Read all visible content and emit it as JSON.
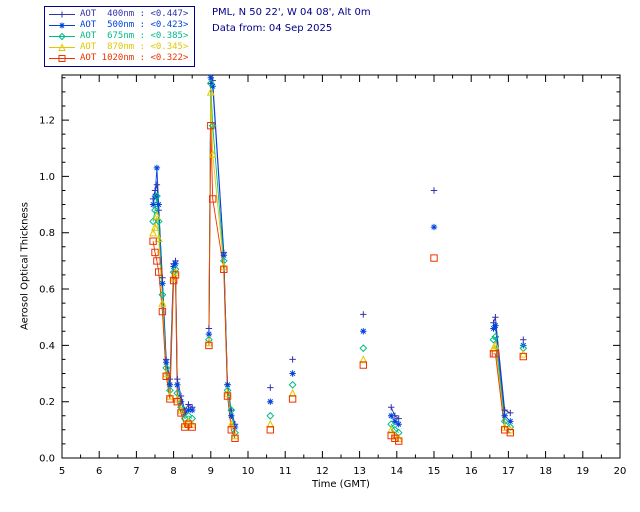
{
  "header": {
    "station_info": "PML, N 50 22', W 04 08', Alt 0m",
    "data_from": "Data from: 04 Sep 2025",
    "text_color": "#00008B"
  },
  "legend": {
    "border_color": "#000099",
    "entries": [
      {
        "label": "AOT  400nm : <0.447>",
        "color": "#3333AA",
        "symbol": "plus"
      },
      {
        "label": "AOT  500nm : <0.423>",
        "color": "#0044DD",
        "symbol": "asterisk"
      },
      {
        "label": "AOT  675nm : <0.385>",
        "color": "#00BB88",
        "symbol": "diamond"
      },
      {
        "label": "AOT  870nm : <0.345>",
        "color": "#E0C800",
        "symbol": "triangle"
      },
      {
        "label": "AOT 1020nm : <0.322>",
        "color": "#EE3300",
        "symbol": "square"
      }
    ]
  },
  "chart_data": {
    "type": "scatter",
    "title": "",
    "xlabel": "Time (GMT)",
    "ylabel": "Aerosol Optical Thickness",
    "xlim": [
      5,
      20
    ],
    "ylim": [
      0,
      1.36
    ],
    "xticks": [
      5,
      6,
      7,
      8,
      9,
      10,
      11,
      12,
      13,
      14,
      15,
      16,
      17,
      18,
      19,
      20
    ],
    "yticks": [
      0.0,
      0.2,
      0.4,
      0.6,
      0.8,
      1.0,
      1.2
    ],
    "grid": false,
    "legend_position": "top-left",
    "gap_threshold_hours": 0.32,
    "x": [
      7.45,
      7.5,
      7.55,
      7.6,
      7.7,
      7.8,
      7.9,
      8.0,
      8.05,
      8.1,
      8.2,
      8.3,
      8.4,
      8.5,
      8.95,
      9.0,
      9.05,
      9.35,
      9.45,
      9.55,
      9.65,
      10.6,
      11.2,
      13.1,
      13.85,
      13.95,
      14.05,
      15.0,
      16.6,
      16.65,
      16.9,
      17.05,
      17.4
    ],
    "series": [
      {
        "id": "400nm",
        "name": "AOT 400nm",
        "wavelength_nm": 400,
        "mean_label": "<0.447>",
        "color": "#3333AA",
        "symbol": "plus",
        "values": [
          0.92,
          0.95,
          0.97,
          0.88,
          0.64,
          0.35,
          0.28,
          0.69,
          0.7,
          0.28,
          0.22,
          0.17,
          0.19,
          0.18,
          0.46,
          1.33,
          1.34,
          0.73,
          0.26,
          0.17,
          0.12,
          0.25,
          0.35,
          0.51,
          0.18,
          0.15,
          0.14,
          0.95,
          0.48,
          0.5,
          0.17,
          0.16,
          0.42
        ]
      },
      {
        "id": "500nm",
        "name": "AOT 500nm",
        "wavelength_nm": 500,
        "mean_label": "<0.423>",
        "color": "#0044DD",
        "symbol": "asterisk",
        "values": [
          0.9,
          0.93,
          1.03,
          0.9,
          0.62,
          0.34,
          0.26,
          0.68,
          0.69,
          0.26,
          0.2,
          0.16,
          0.17,
          0.17,
          0.44,
          1.35,
          1.32,
          0.72,
          0.26,
          0.15,
          0.11,
          0.2,
          0.3,
          0.45,
          0.15,
          0.13,
          0.12,
          0.82,
          0.46,
          0.47,
          0.15,
          0.13,
          0.4
        ]
      },
      {
        "id": "675nm",
        "name": "AOT 675nm",
        "wavelength_nm": 675,
        "mean_label": "<0.385>",
        "color": "#00BB88",
        "symbol": "diamond",
        "values": [
          0.84,
          0.88,
          0.93,
          0.84,
          0.58,
          0.32,
          0.24,
          0.66,
          0.67,
          0.23,
          0.18,
          0.14,
          0.15,
          0.14,
          0.42,
          1.33,
          1.18,
          0.7,
          0.24,
          0.17,
          0.09,
          0.15,
          0.26,
          0.39,
          0.12,
          0.1,
          0.09,
          null,
          0.42,
          0.43,
          0.13,
          0.11,
          0.39
        ]
      },
      {
        "id": "870nm",
        "name": "AOT 870nm",
        "wavelength_nm": 870,
        "mean_label": "<0.345>",
        "color": "#E0C800",
        "symbol": "triangle",
        "values": [
          0.8,
          0.82,
          0.86,
          0.78,
          0.55,
          0.3,
          0.22,
          0.64,
          0.66,
          0.21,
          0.17,
          0.12,
          0.13,
          0.12,
          0.41,
          1.3,
          1.08,
          0.68,
          0.23,
          0.12,
          0.08,
          0.12,
          0.23,
          0.35,
          0.1,
          0.08,
          0.07,
          null,
          0.39,
          0.4,
          0.11,
          0.1,
          0.37
        ]
      },
      {
        "id": "1020nm",
        "name": "AOT 1020nm",
        "wavelength_nm": 1020,
        "mean_label": "<0.322>",
        "color": "#EE3300",
        "symbol": "square",
        "values": [
          0.77,
          0.73,
          0.7,
          0.66,
          0.52,
          0.29,
          0.21,
          0.63,
          0.65,
          0.2,
          0.16,
          0.11,
          0.12,
          0.11,
          0.4,
          1.18,
          0.92,
          0.67,
          0.22,
          0.1,
          0.07,
          0.1,
          0.21,
          0.33,
          0.08,
          0.07,
          0.06,
          0.71,
          0.37,
          0.37,
          0.1,
          0.09,
          0.36
        ]
      }
    ]
  }
}
